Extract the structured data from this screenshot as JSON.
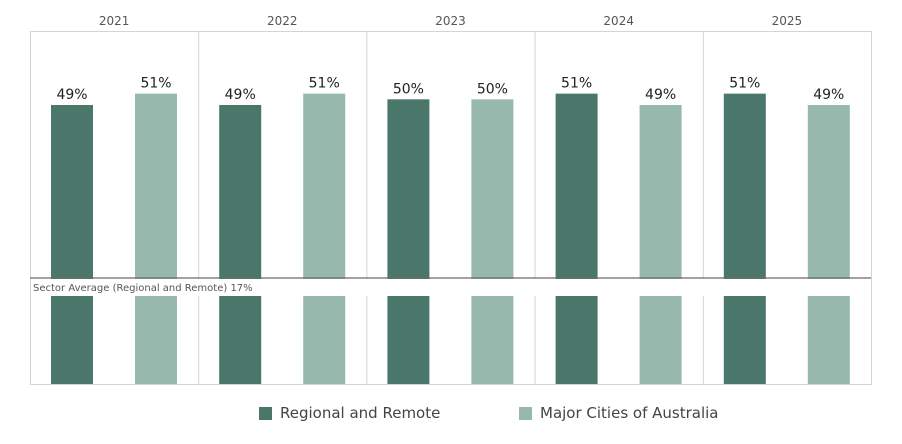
{
  "chart_data": {
    "type": "bar",
    "categories": [
      "2021",
      "2022",
      "2023",
      "2024",
      "2025"
    ],
    "series": [
      {
        "name": "Regional and Remote",
        "color": "#4a7769",
        "values": [
          49,
          49,
          50,
          51,
          51
        ],
        "labels": [
          "49%",
          "49%",
          "50%",
          "51%",
          "51%"
        ]
      },
      {
        "name": "Major Cities of Australia",
        "color": "#96b8ad",
        "values": [
          51,
          51,
          50,
          49,
          49
        ],
        "labels": [
          "51%",
          "51%",
          "50%",
          "49%",
          "49%"
        ]
      }
    ],
    "reference_line": {
      "label": "Sector Average (Regional and Remote) 17%",
      "value": 17
    },
    "ylim": [
      0,
      62
    ],
    "legend_position": "bottom"
  }
}
